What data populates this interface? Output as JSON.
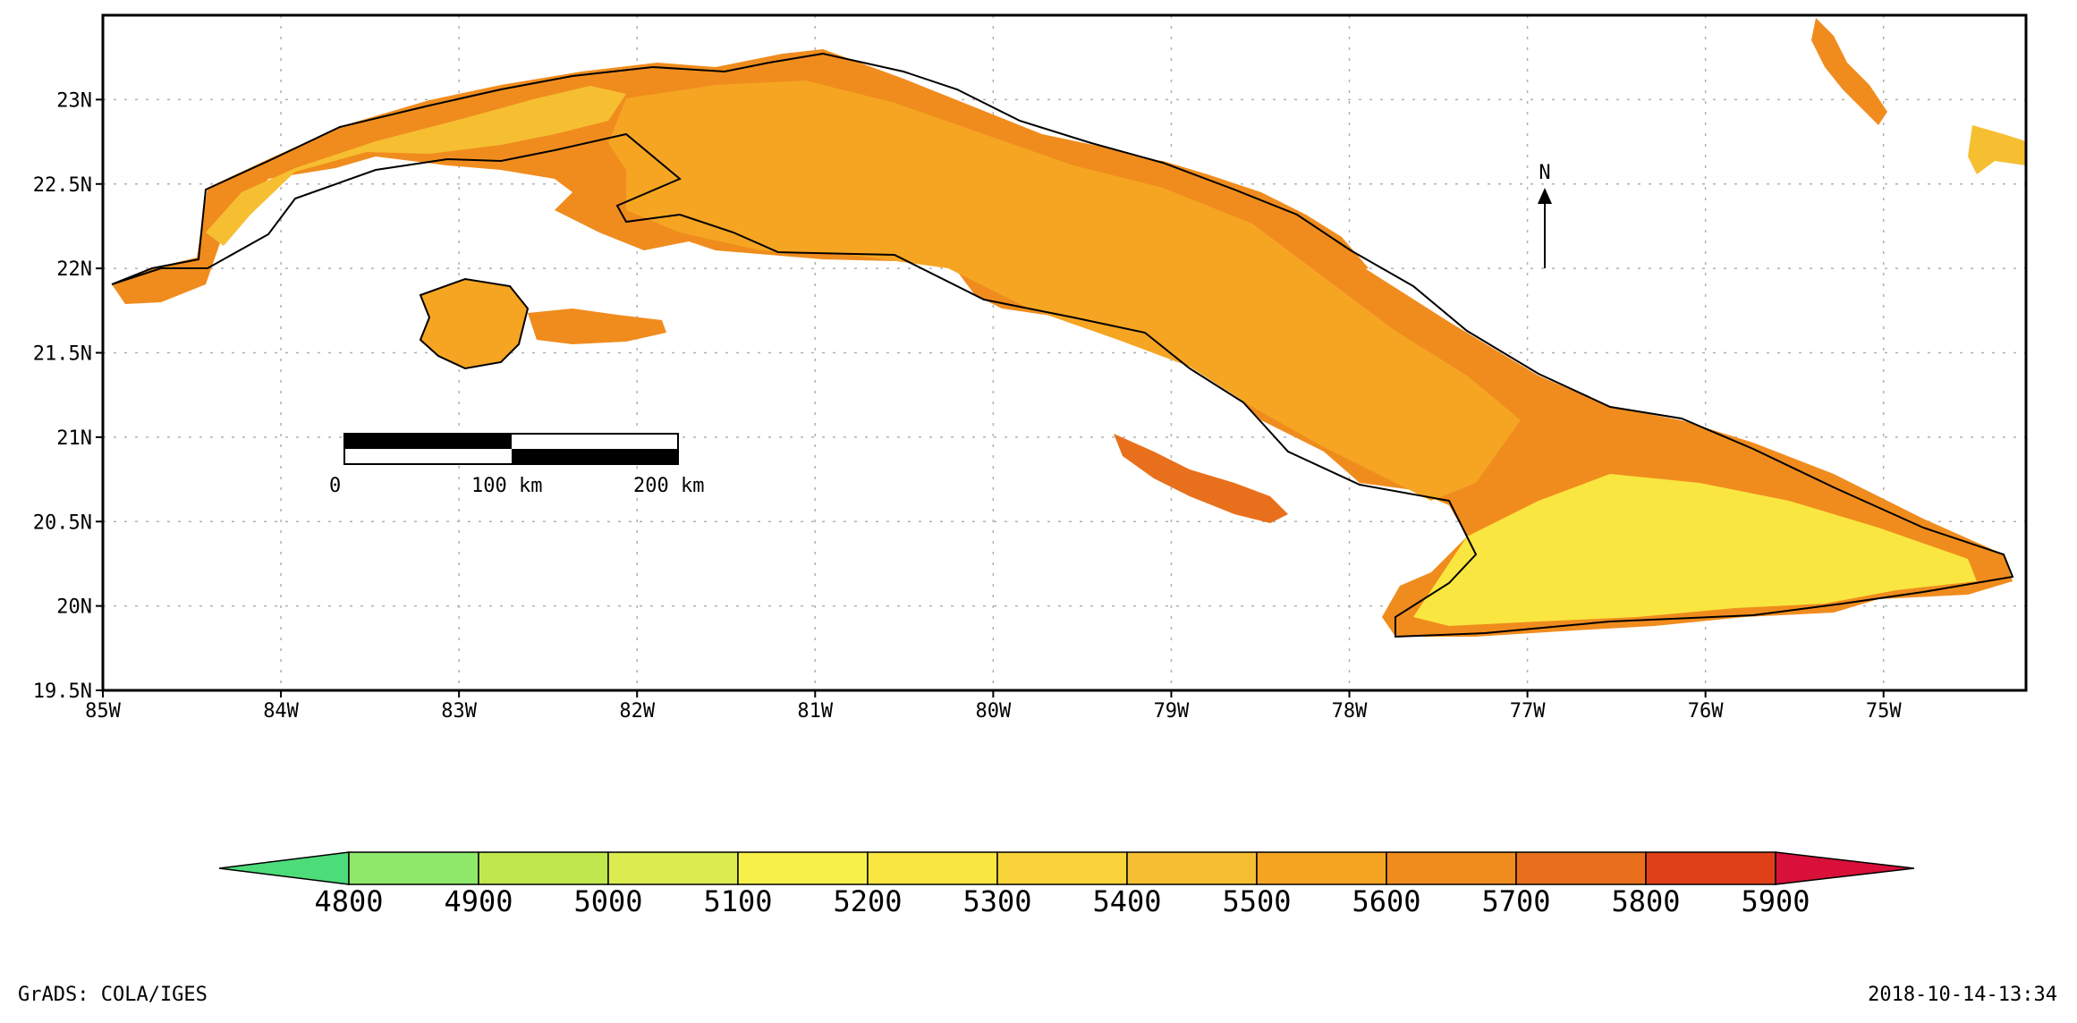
{
  "map": {
    "lat_ticks": [
      {
        "value": 23,
        "label": "23N"
      },
      {
        "value": 22.5,
        "label": "22.5N"
      },
      {
        "value": 22,
        "label": "22N"
      },
      {
        "value": 21.5,
        "label": "21.5N"
      },
      {
        "value": 21,
        "label": "21N"
      },
      {
        "value": 20.5,
        "label": "20.5N"
      },
      {
        "value": 20,
        "label": "20N"
      },
      {
        "value": 19.5,
        "label": "19.5N"
      }
    ],
    "lon_ticks": [
      {
        "value": -85,
        "label": "85W"
      },
      {
        "value": -84,
        "label": "84W"
      },
      {
        "value": -83,
        "label": "83W"
      },
      {
        "value": -82,
        "label": "82W"
      },
      {
        "value": -81,
        "label": "81W"
      },
      {
        "value": -80,
        "label": "80W"
      },
      {
        "value": -79,
        "label": "79W"
      },
      {
        "value": -78,
        "label": "78W"
      },
      {
        "value": -77,
        "label": "77W"
      },
      {
        "value": -76,
        "label": "76W"
      },
      {
        "value": -75,
        "label": "75W"
      }
    ],
    "lon_range": [
      -85,
      -74.2
    ],
    "lat_range": [
      19.5,
      23.5
    ],
    "grid": "dotted",
    "north_arrow_label": "N",
    "scale_bar": {
      "labels": [
        "0",
        "100 km",
        "200 km"
      ]
    }
  },
  "colorbar": {
    "labels": [
      "4800",
      "4900",
      "5000",
      "5100",
      "5200",
      "5300",
      "5400",
      "5500",
      "5600",
      "5700",
      "5800",
      "5900"
    ],
    "low_color": "#4ddc7a",
    "high_color": "#d8103a",
    "colors": [
      "#8ee86a",
      "#bfe84e",
      "#dcec50",
      "#f8f04a",
      "#fae640",
      "#f8d43a",
      "#f6bf32",
      "#f5a522",
      "#f08c1e",
      "#e8701c",
      "#e04018"
    ]
  },
  "regions": {
    "cuba_color": "#f5a522",
    "west_color": "#f6bf32",
    "east_color": "#fae640",
    "coast_color": "#f08c1e",
    "cays_color": "#e8701c"
  },
  "footer": {
    "left": "GrADS: COLA/IGES",
    "right": "2018-10-14-13:34"
  }
}
